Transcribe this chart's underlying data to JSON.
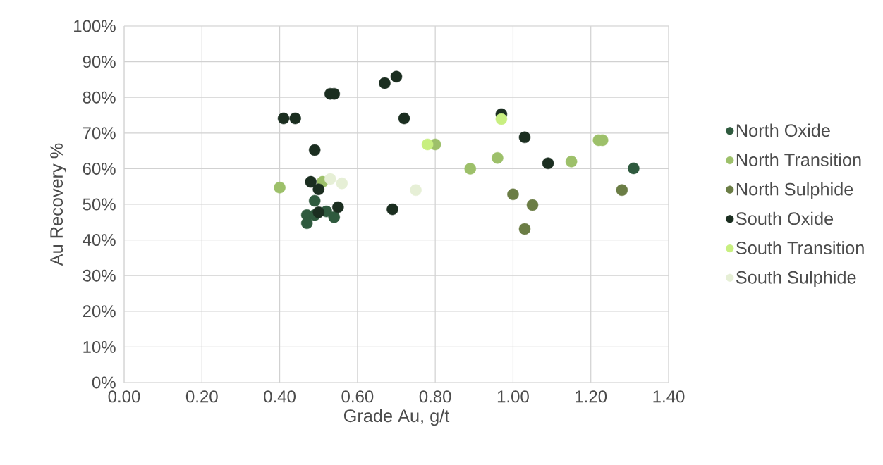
{
  "chart_data": {
    "type": "scatter",
    "xlabel": "Grade Au, g/t",
    "ylabel": "Au Recovery %",
    "xlim": [
      0,
      1.4
    ],
    "ylim": [
      0,
      100
    ],
    "xticks": [
      {
        "value": 0,
        "label": "0.00"
      },
      {
        "value": 0.2,
        "label": "0.20"
      },
      {
        "value": 0.4,
        "label": "0.40"
      },
      {
        "value": 0.6,
        "label": "0.60"
      },
      {
        "value": 0.8,
        "label": "0.80"
      },
      {
        "value": 1.0,
        "label": "1.00"
      },
      {
        "value": 1.2,
        "label": "1.20"
      },
      {
        "value": 1.4,
        "label": "1.40"
      }
    ],
    "yticks": [
      {
        "value": 0,
        "label": "0%"
      },
      {
        "value": 10,
        "label": "10%"
      },
      {
        "value": 20,
        "label": "20%"
      },
      {
        "value": 30,
        "label": "30%"
      },
      {
        "value": 40,
        "label": "40%"
      },
      {
        "value": 50,
        "label": "50%"
      },
      {
        "value": 60,
        "label": "60%"
      },
      {
        "value": 70,
        "label": "70%"
      },
      {
        "value": 80,
        "label": "80%"
      },
      {
        "value": 90,
        "label": "90%"
      },
      {
        "value": 100,
        "label": "100%"
      }
    ],
    "grid": true,
    "legend": "right",
    "marker": "circle",
    "series": [
      {
        "name": "North Oxide",
        "color": "#2f5a3e",
        "x": [
          0.47,
          0.47,
          0.49,
          0.52,
          0.54,
          0.49,
          1.31
        ],
        "values": [
          47,
          44.7,
          47,
          48,
          46.4,
          51,
          60.1
        ]
      },
      {
        "name": "North Transition",
        "color": "#9dc06a",
        "x": [
          0.4,
          0.51,
          0.8,
          0.96,
          0.89,
          1.15,
          1.22,
          1.23
        ],
        "values": [
          54.7,
          56.3,
          66.8,
          63,
          60,
          62,
          68,
          68
        ]
      },
      {
        "name": "North Sulphide",
        "color": "#6b7d45",
        "x": [
          1.0,
          1.05,
          1.03,
          1.28
        ],
        "values": [
          52.8,
          49.8,
          43.1,
          54
        ]
      },
      {
        "name": "South Oxide",
        "color": "#1b2e20",
        "x": [
          0.41,
          0.44,
          0.53,
          0.54,
          0.67,
          0.7,
          0.72,
          0.49,
          0.48,
          0.5,
          0.55,
          0.69,
          0.5,
          0.97,
          1.03,
          1.09
        ],
        "values": [
          74.1,
          74.1,
          81,
          81,
          84,
          85.8,
          74.1,
          65.2,
          56.3,
          54.2,
          49.2,
          48.6,
          47.8,
          75.3,
          68.8,
          61.5
        ]
      },
      {
        "name": "South Transition",
        "color": "#c8ef80",
        "x": [
          0.97,
          0.78
        ],
        "values": [
          73.9,
          66.8
        ]
      },
      {
        "name": "South Sulphide",
        "color": "#e6efd6",
        "x": [
          0.53,
          0.56,
          0.75
        ],
        "values": [
          57.1,
          55.9,
          54
        ]
      }
    ]
  }
}
